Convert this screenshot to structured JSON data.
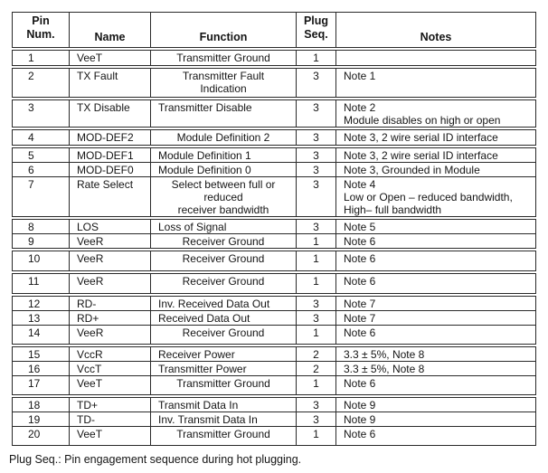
{
  "table": {
    "headers": {
      "pin": "Pin\nNum.",
      "name": "Name",
      "function": "Function",
      "plug": "Plug\nSeq.",
      "notes": "Notes"
    },
    "rows": [
      {
        "pin": "1",
        "name": "VeeT",
        "function": "Transmitter Ground",
        "plug": "1",
        "notes": ""
      },
      {
        "pin": "2",
        "name": "TX Fault",
        "function": "Transmitter Fault\nIndication",
        "plug": "3",
        "notes": "Note 1"
      },
      {
        "pin": "3",
        "name": "TX Disable",
        "function": "Transmitter Disable",
        "plug": "3",
        "notes": "Note 2\nModule disables on high or open"
      },
      {
        "pin": "4",
        "name": "MOD-DEF2",
        "function": "Module Definition 2",
        "plug": "3",
        "notes": "Note 3, 2 wire serial ID interface"
      },
      {
        "pin": "5",
        "name": "MOD-DEF1",
        "function": "Module Definition 1",
        "plug": "3",
        "notes": "Note 3, 2 wire serial ID interface"
      },
      {
        "pin": "6",
        "name": "MOD-DEF0",
        "function": "Module Definition 0",
        "plug": "3",
        "notes": "Note 3, Grounded in Module"
      },
      {
        "pin": "7",
        "name": "Rate Select",
        "function": "Select between full or\nreduced\nreceiver bandwidth",
        "plug": "3",
        "notes": "Note 4\nLow or Open – reduced bandwidth,\nHigh– full bandwidth"
      },
      {
        "pin": "8",
        "name": "LOS",
        "function": "Loss of Signal",
        "plug": "3",
        "notes": "Note 5"
      },
      {
        "pin": "9",
        "name": "VeeR",
        "function": "Receiver Ground",
        "plug": "1",
        "notes": "Note 6"
      },
      {
        "pin": "10",
        "name": "VeeR",
        "function": "Receiver Ground",
        "plug": "1",
        "notes": "Note 6"
      },
      {
        "pin": "11",
        "name": "VeeR",
        "function": "Receiver Ground",
        "plug": "1",
        "notes": "Note 6"
      },
      {
        "pin": "12",
        "name": "RD-",
        "function": "Inv. Received Data Out",
        "plug": "3",
        "notes": "Note 7"
      },
      {
        "pin": "13",
        "name": "RD+",
        "function": "Received Data Out",
        "plug": "3",
        "notes": "Note 7"
      },
      {
        "pin": "14",
        "name": "VeeR",
        "function": "Receiver Ground",
        "plug": "1",
        "notes": "Note 6"
      },
      {
        "pin": "15",
        "name": "VccR",
        "function": "Receiver Power",
        "plug": "2",
        "notes": "3.3 ± 5%, Note 8"
      },
      {
        "pin": "16",
        "name": "VccT",
        "function": "Transmitter Power",
        "plug": "2",
        "notes": "3.3 ± 5%, Note 8"
      },
      {
        "pin": "17",
        "name": "VeeT",
        "function": "Transmitter Ground",
        "plug": "1",
        "notes": "Note 6"
      },
      {
        "pin": "18",
        "name": "TD+",
        "function": "Transmit Data In",
        "plug": "3",
        "notes": "Note 9"
      },
      {
        "pin": "19",
        "name": "TD-",
        "function": "Inv. Transmit Data In",
        "plug": "3",
        "notes": "Note 9"
      },
      {
        "pin": "20",
        "name": "VeeT",
        "function": "Transmitter Ground",
        "plug": "1",
        "notes": "Note 6"
      }
    ]
  },
  "footer": {
    "caption": "Plug Seq.: Pin engagement sequence during hot plugging."
  }
}
